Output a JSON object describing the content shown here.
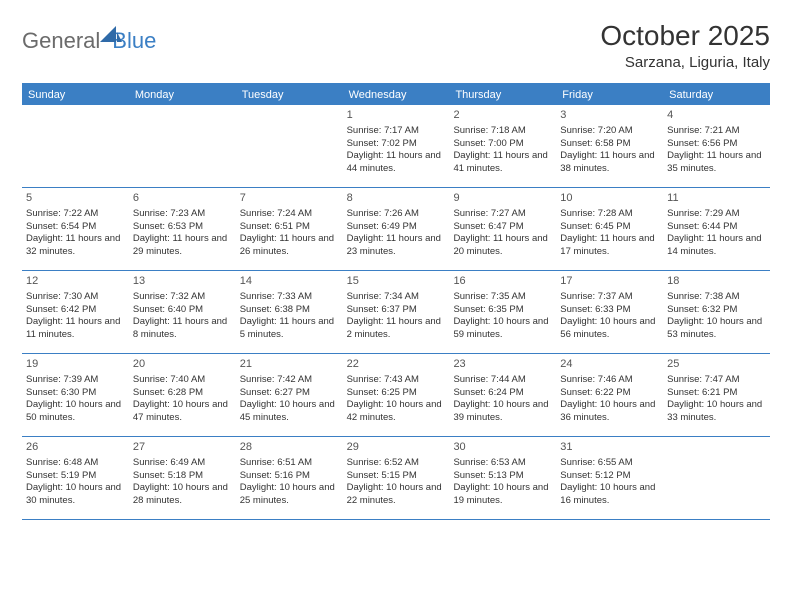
{
  "brand": {
    "part1": "General",
    "part2": "Blue"
  },
  "title": "October 2025",
  "location": "Sarzana, Liguria, Italy",
  "colors": {
    "accent": "#3b7fc4",
    "text": "#333333",
    "logo_gray": "#6b6b6b",
    "background": "#ffffff"
  },
  "daysOfWeek": [
    "Sunday",
    "Monday",
    "Tuesday",
    "Wednesday",
    "Thursday",
    "Friday",
    "Saturday"
  ],
  "weeks": [
    [
      {
        "n": "",
        "sr": "",
        "ss": "",
        "dl": ""
      },
      {
        "n": "",
        "sr": "",
        "ss": "",
        "dl": ""
      },
      {
        "n": "",
        "sr": "",
        "ss": "",
        "dl": ""
      },
      {
        "n": "1",
        "sr": "Sunrise: 7:17 AM",
        "ss": "Sunset: 7:02 PM",
        "dl": "Daylight: 11 hours and 44 minutes."
      },
      {
        "n": "2",
        "sr": "Sunrise: 7:18 AM",
        "ss": "Sunset: 7:00 PM",
        "dl": "Daylight: 11 hours and 41 minutes."
      },
      {
        "n": "3",
        "sr": "Sunrise: 7:20 AM",
        "ss": "Sunset: 6:58 PM",
        "dl": "Daylight: 11 hours and 38 minutes."
      },
      {
        "n": "4",
        "sr": "Sunrise: 7:21 AM",
        "ss": "Sunset: 6:56 PM",
        "dl": "Daylight: 11 hours and 35 minutes."
      }
    ],
    [
      {
        "n": "5",
        "sr": "Sunrise: 7:22 AM",
        "ss": "Sunset: 6:54 PM",
        "dl": "Daylight: 11 hours and 32 minutes."
      },
      {
        "n": "6",
        "sr": "Sunrise: 7:23 AM",
        "ss": "Sunset: 6:53 PM",
        "dl": "Daylight: 11 hours and 29 minutes."
      },
      {
        "n": "7",
        "sr": "Sunrise: 7:24 AM",
        "ss": "Sunset: 6:51 PM",
        "dl": "Daylight: 11 hours and 26 minutes."
      },
      {
        "n": "8",
        "sr": "Sunrise: 7:26 AM",
        "ss": "Sunset: 6:49 PM",
        "dl": "Daylight: 11 hours and 23 minutes."
      },
      {
        "n": "9",
        "sr": "Sunrise: 7:27 AM",
        "ss": "Sunset: 6:47 PM",
        "dl": "Daylight: 11 hours and 20 minutes."
      },
      {
        "n": "10",
        "sr": "Sunrise: 7:28 AM",
        "ss": "Sunset: 6:45 PM",
        "dl": "Daylight: 11 hours and 17 minutes."
      },
      {
        "n": "11",
        "sr": "Sunrise: 7:29 AM",
        "ss": "Sunset: 6:44 PM",
        "dl": "Daylight: 11 hours and 14 minutes."
      }
    ],
    [
      {
        "n": "12",
        "sr": "Sunrise: 7:30 AM",
        "ss": "Sunset: 6:42 PM",
        "dl": "Daylight: 11 hours and 11 minutes."
      },
      {
        "n": "13",
        "sr": "Sunrise: 7:32 AM",
        "ss": "Sunset: 6:40 PM",
        "dl": "Daylight: 11 hours and 8 minutes."
      },
      {
        "n": "14",
        "sr": "Sunrise: 7:33 AM",
        "ss": "Sunset: 6:38 PM",
        "dl": "Daylight: 11 hours and 5 minutes."
      },
      {
        "n": "15",
        "sr": "Sunrise: 7:34 AM",
        "ss": "Sunset: 6:37 PM",
        "dl": "Daylight: 11 hours and 2 minutes."
      },
      {
        "n": "16",
        "sr": "Sunrise: 7:35 AM",
        "ss": "Sunset: 6:35 PM",
        "dl": "Daylight: 10 hours and 59 minutes."
      },
      {
        "n": "17",
        "sr": "Sunrise: 7:37 AM",
        "ss": "Sunset: 6:33 PM",
        "dl": "Daylight: 10 hours and 56 minutes."
      },
      {
        "n": "18",
        "sr": "Sunrise: 7:38 AM",
        "ss": "Sunset: 6:32 PM",
        "dl": "Daylight: 10 hours and 53 minutes."
      }
    ],
    [
      {
        "n": "19",
        "sr": "Sunrise: 7:39 AM",
        "ss": "Sunset: 6:30 PM",
        "dl": "Daylight: 10 hours and 50 minutes."
      },
      {
        "n": "20",
        "sr": "Sunrise: 7:40 AM",
        "ss": "Sunset: 6:28 PM",
        "dl": "Daylight: 10 hours and 47 minutes."
      },
      {
        "n": "21",
        "sr": "Sunrise: 7:42 AM",
        "ss": "Sunset: 6:27 PM",
        "dl": "Daylight: 10 hours and 45 minutes."
      },
      {
        "n": "22",
        "sr": "Sunrise: 7:43 AM",
        "ss": "Sunset: 6:25 PM",
        "dl": "Daylight: 10 hours and 42 minutes."
      },
      {
        "n": "23",
        "sr": "Sunrise: 7:44 AM",
        "ss": "Sunset: 6:24 PM",
        "dl": "Daylight: 10 hours and 39 minutes."
      },
      {
        "n": "24",
        "sr": "Sunrise: 7:46 AM",
        "ss": "Sunset: 6:22 PM",
        "dl": "Daylight: 10 hours and 36 minutes."
      },
      {
        "n": "25",
        "sr": "Sunrise: 7:47 AM",
        "ss": "Sunset: 6:21 PM",
        "dl": "Daylight: 10 hours and 33 minutes."
      }
    ],
    [
      {
        "n": "26",
        "sr": "Sunrise: 6:48 AM",
        "ss": "Sunset: 5:19 PM",
        "dl": "Daylight: 10 hours and 30 minutes."
      },
      {
        "n": "27",
        "sr": "Sunrise: 6:49 AM",
        "ss": "Sunset: 5:18 PM",
        "dl": "Daylight: 10 hours and 28 minutes."
      },
      {
        "n": "28",
        "sr": "Sunrise: 6:51 AM",
        "ss": "Sunset: 5:16 PM",
        "dl": "Daylight: 10 hours and 25 minutes."
      },
      {
        "n": "29",
        "sr": "Sunrise: 6:52 AM",
        "ss": "Sunset: 5:15 PM",
        "dl": "Daylight: 10 hours and 22 minutes."
      },
      {
        "n": "30",
        "sr": "Sunrise: 6:53 AM",
        "ss": "Sunset: 5:13 PM",
        "dl": "Daylight: 10 hours and 19 minutes."
      },
      {
        "n": "31",
        "sr": "Sunrise: 6:55 AM",
        "ss": "Sunset: 5:12 PM",
        "dl": "Daylight: 10 hours and 16 minutes."
      },
      {
        "n": "",
        "sr": "",
        "ss": "",
        "dl": ""
      }
    ]
  ]
}
